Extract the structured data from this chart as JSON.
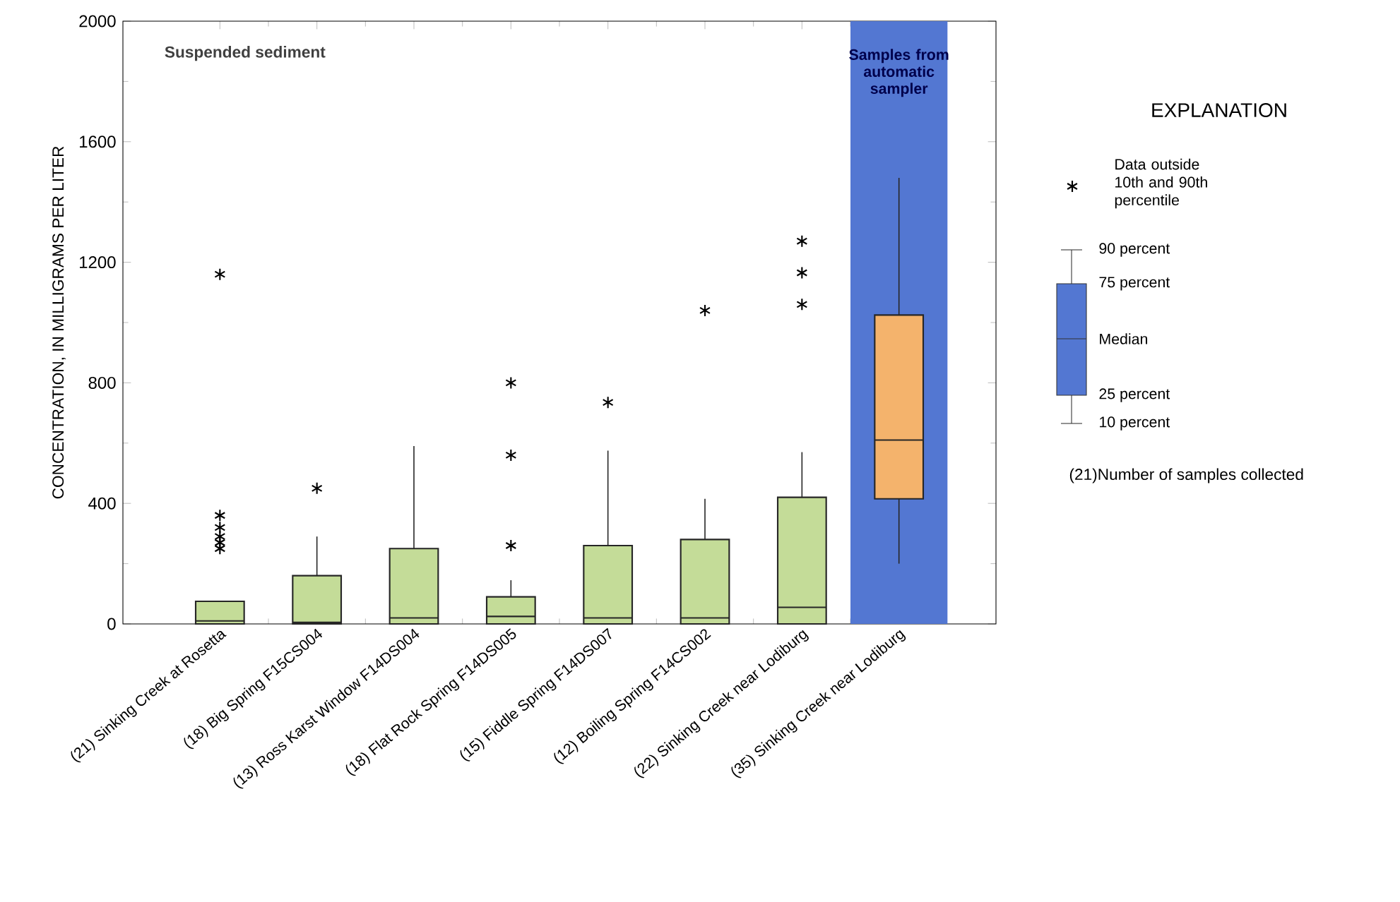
{
  "chart_data": {
    "type": "box",
    "ylabel": "CONCENTRATION, IN MILLIGRAMS PER LITER",
    "legend_title": "EXPLANATION",
    "categories": [
      "(21) Sinking Creek at Rosetta",
      "(18) Big Spring F15CS004",
      "(13) Ross Karst Window F14DS004",
      "(18) Flat Rock Spring F14DS005",
      "(15) Fiddle Spring F14DS007",
      "(12) Boiling Spring F14CS002",
      "(22) Sinking Creek near Lodiburg",
      "(35) Sinking Creek near Lodiburg"
    ],
    "series": [
      {
        "color": "#c4dc98",
        "boxes": [
          {
            "low": 0,
            "q1": 0,
            "median": 10,
            "q3": 75,
            "high": 75,
            "outliers": [
              1160,
              360,
              320,
              290,
              270,
              250
            ]
          },
          {
            "low": 0,
            "q1": 0,
            "median": 5,
            "q3": 160,
            "high": 290,
            "outliers": [
              450
            ]
          },
          {
            "low": 0,
            "q1": 0,
            "median": 20,
            "q3": 250,
            "high": 590
          },
          {
            "low": 0,
            "q1": 0,
            "median": 25,
            "q3": 90,
            "high": 145,
            "outliers": [
              800,
              560,
              260
            ]
          },
          {
            "low": 0,
            "q1": 0,
            "median": 20,
            "q3": 260,
            "high": 575,
            "outliers": [
              735
            ]
          },
          {
            "low": 0,
            "q1": 0,
            "median": 20,
            "q3": 280,
            "high": 415,
            "outliers": [
              1040
            ]
          },
          {
            "low": 0,
            "q1": 0,
            "median": 55,
            "q3": 420,
            "high": 570,
            "outliers": [
              1270,
              1165,
              1060
            ]
          },
          null
        ]
      },
      {
        "color": "#f4b36c",
        "boxes": [
          null,
          null,
          null,
          null,
          null,
          null,
          null,
          {
            "low": 200,
            "q1": 415,
            "median": 610,
            "q3": 1025,
            "high": 1480
          }
        ]
      }
    ],
    "bands": [
      {
        "axis": "x",
        "from": "(35) Sinking Creek near Lodiburg",
        "to": "(35) Sinking Creek near Lodiburg",
        "label": "Samples from automatic sampler",
        "color": "#5377d2"
      }
    ],
    "ylim": [
      0,
      2000
    ],
    "yticks": [
      0,
      400,
      800,
      1200,
      1600,
      2000
    ],
    "marker": "star",
    "legend": "right",
    "annotations": [
      "Suspended sediment",
      "Data outside 10th and 90th percentile",
      "90 percent",
      "75 percent",
      "Median",
      "25 percent",
      "10 percent",
      "(21)Number of samples collected"
    ]
  }
}
